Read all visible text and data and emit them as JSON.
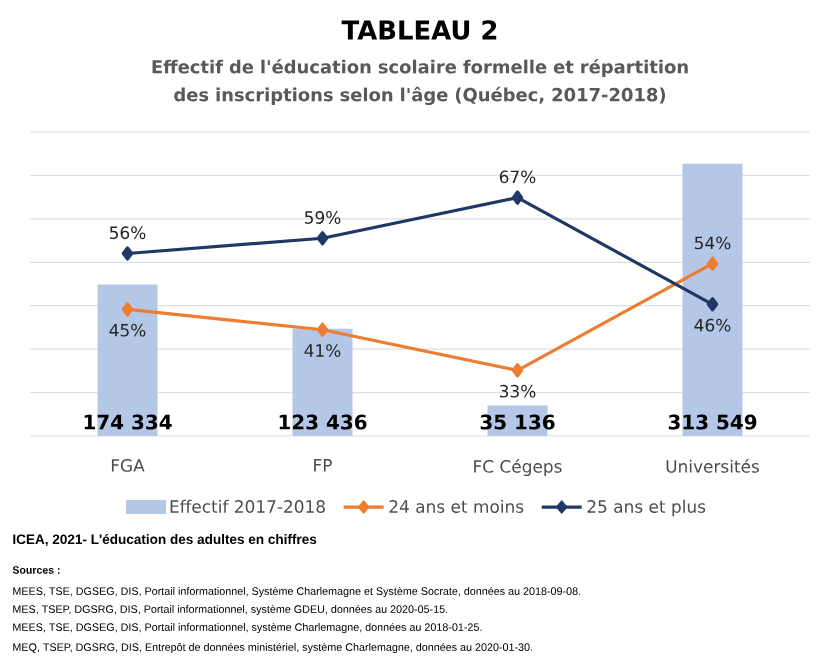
{
  "chart_data": {
    "type": "bar",
    "title": "TABLEAU 2",
    "subtitle": "Effectif de l'éducation scolaire formelle et répartition des inscriptions selon l'âge (Québec, 2017-2018)",
    "categories": [
      "FGA",
      "FP",
      "FC Cégeps",
      "Universités"
    ],
    "series": [
      {
        "name": "Effectif 2017-2018",
        "color": "#b4c7e7",
        "values": [
          174334,
          123436,
          35136,
          313549
        ],
        "value_labels": [
          "174 334",
          "123 436",
          "35 136",
          "313 549"
        ]
      },
      {
        "name": "24 ans et moins",
        "type": "line",
        "axis": "y2",
        "color": "#ed7d31",
        "values": [
          45,
          41,
          33,
          54
        ],
        "value_labels": [
          "45%",
          "41%",
          "33%",
          "54%"
        ]
      },
      {
        "name": "25 ans et plus",
        "type": "line",
        "axis": "y2",
        "color": "#203864",
        "values": [
          56,
          59,
          67,
          46
        ],
        "value_labels": [
          "56%",
          "59%",
          "67%",
          "46%"
        ]
      }
    ],
    "ylim": [
      0,
      350000
    ],
    "yticks": [
      {
        "value": 0,
        "label": null
      },
      {
        "value": 50000,
        "label": null
      },
      {
        "value": 100000,
        "label": null
      },
      {
        "value": 150000,
        "label": null
      },
      {
        "value": 200000,
        "label": null
      },
      {
        "value": 250000,
        "label": null
      },
      {
        "value": 300000,
        "label": null
      },
      {
        "value": 350000,
        "label": null
      }
    ],
    "tick_labels": "x",
    "grid": "y",
    "legend": "bottom",
    "marker": "diamond",
    "line_style": "solid",
    "annotations": [
      "ICEA, 2021- L'éducation des adultes en chiffres",
      "Sources :",
      "MEES, TSE, DGSEG, DIS, Portail informationnel, Système Charlemagne et Système Socrate, données au 2018-09-08.",
      "MES, TSEP, DGSRG, DIS, Portail informationnel, système GDEU, données au 2020-05-15.",
      "MEES, TSE, DGSEG, DIS, Portail informationnel, système Charlemagne, données au 2018-01-25.",
      "MEQ, TSEP, DGSRG, DIS, Entrepôt de données ministériel, système Charlemagne, données au 2020-01-30."
    ]
  }
}
